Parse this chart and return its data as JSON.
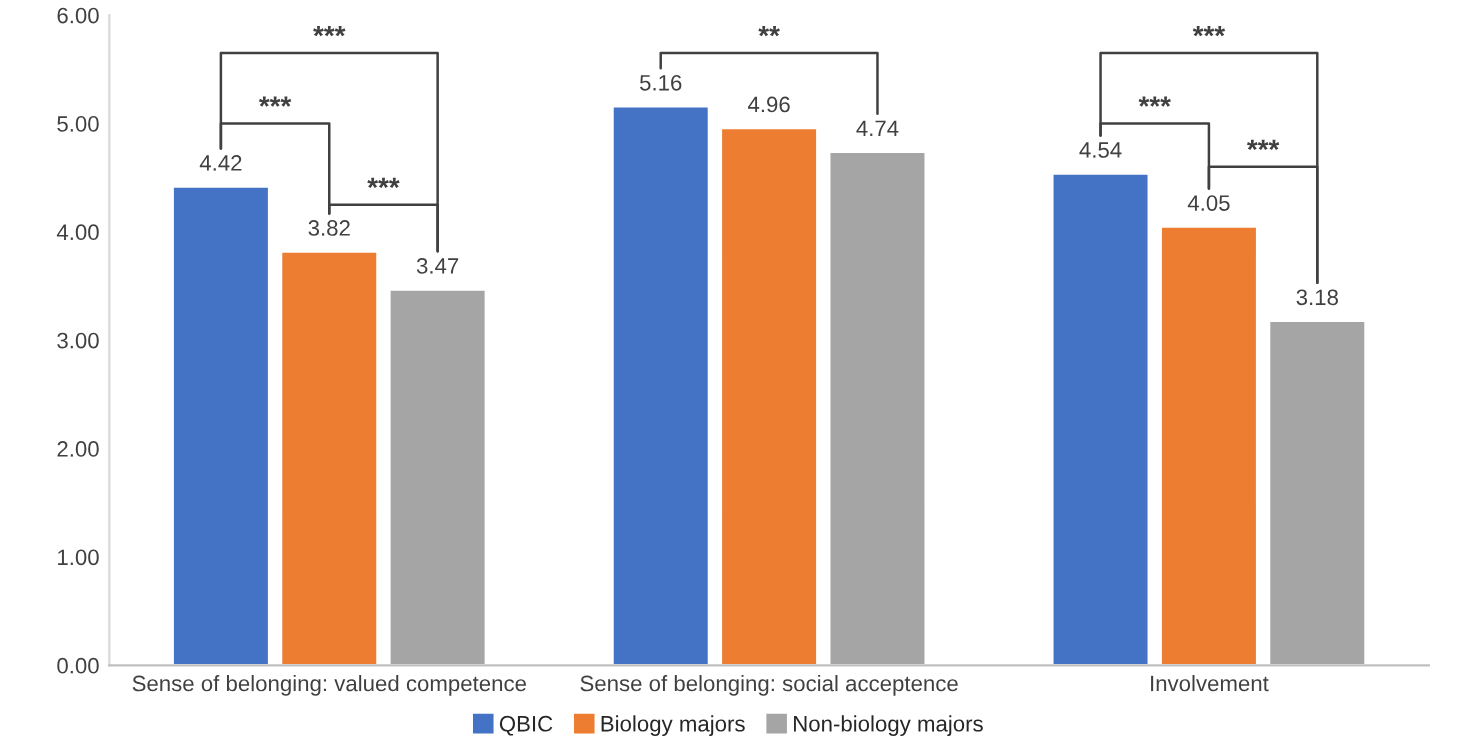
{
  "chart_data": {
    "type": "bar",
    "categories": [
      "Sense of belonging: valued competence",
      "Sense of belonging: social acceptence",
      "Involvement"
    ],
    "series": [
      {
        "name": "QBIC",
        "color": "#4472c4",
        "values": [
          4.42,
          5.16,
          4.54
        ]
      },
      {
        "name": "Biology majors",
        "color": "#ed7d31",
        "values": [
          3.82,
          4.96,
          4.05
        ]
      },
      {
        "name": "Non-biology majors",
        "color": "#a5a5a5",
        "values": [
          3.47,
          4.74,
          3.18
        ]
      }
    ],
    "ylim": [
      0,
      6
    ],
    "yticks": [
      {
        "value": 0,
        "label": "0.00"
      },
      {
        "value": 1,
        "label": "1.00"
      },
      {
        "value": 2,
        "label": "2.00"
      },
      {
        "value": 3,
        "label": "3.00"
      },
      {
        "value": 4,
        "label": "4.00"
      },
      {
        "value": 5,
        "label": "5.00"
      },
      {
        "value": 6,
        "label": "6.00"
      }
    ],
    "data_labels": true,
    "legend": "bottom",
    "grid": false,
    "annotations": [
      "***",
      "***",
      "***",
      "**",
      "***",
      "***",
      "***"
    ]
  }
}
